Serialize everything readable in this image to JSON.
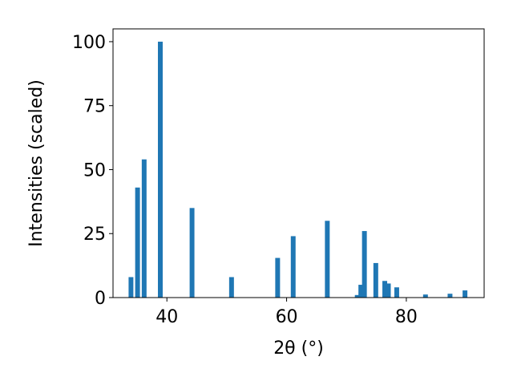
{
  "chart_data": {
    "type": "bar",
    "title": "",
    "xlabel": "2θ (°)",
    "ylabel": "Intensities (scaled)",
    "xlim": [
      31,
      93
    ],
    "ylim": [
      0,
      105
    ],
    "xticks": [
      40,
      60,
      80
    ],
    "yticks": [
      0,
      25,
      50,
      75,
      100
    ],
    "grid": false,
    "legend": "none",
    "bar_color": "#1f77b4",
    "bar_width": 0.8,
    "series": [
      {
        "x": [
          34.0,
          35.1,
          36.2,
          38.9,
          44.2,
          50.8,
          58.5,
          61.1,
          66.8,
          71.8,
          72.4,
          73.0,
          74.9,
          76.4,
          77.0,
          78.4,
          83.2,
          87.3,
          89.8
        ],
        "values": [
          8,
          43,
          54,
          100,
          35,
          8,
          15.5,
          24,
          30,
          1,
          5,
          26,
          13.5,
          6.5,
          5.5,
          4,
          1.2,
          1.5,
          2.8
        ]
      }
    ]
  }
}
